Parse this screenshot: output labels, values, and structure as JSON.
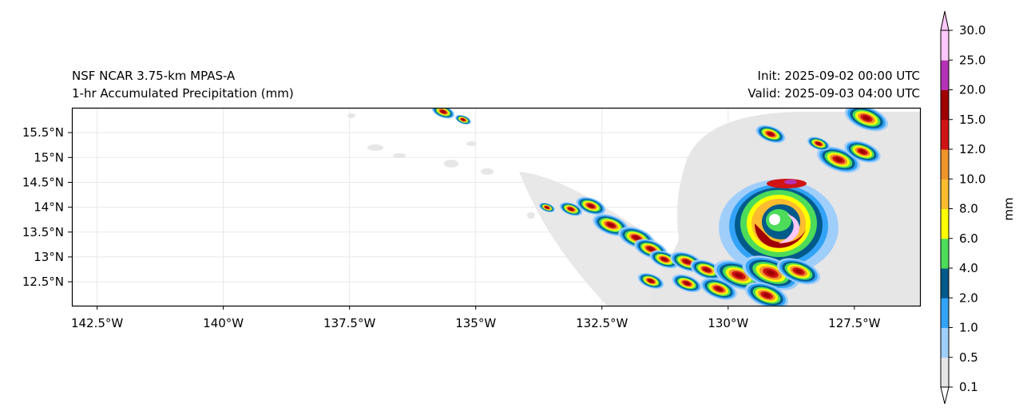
{
  "title_left": {
    "line1": "NSF NCAR 3.75-km MPAS-A",
    "line2": "1-hr Accumulated Precipitation (mm)"
  },
  "title_right": {
    "line1": "Init: 2025-09-02 00:00 UTC",
    "line2": "Valid: 2025-09-03 04:00 UTC"
  },
  "map": {
    "lon_ticks": [
      {
        "value": -142.5,
        "label": "142.5°W"
      },
      {
        "value": -140,
        "label": "140°W"
      },
      {
        "value": -137.5,
        "label": "137.5°W"
      },
      {
        "value": -135,
        "label": "135°W"
      },
      {
        "value": -132.5,
        "label": "132.5°W"
      },
      {
        "value": -130,
        "label": "130°W"
      },
      {
        "value": -127.5,
        "label": "127.5°W"
      }
    ],
    "lat_ticks": [
      {
        "value": 15.5,
        "label": "15.5°N"
      },
      {
        "value": 15,
        "label": "15°N"
      },
      {
        "value": 14.5,
        "label": "14.5°N"
      },
      {
        "value": 14,
        "label": "14°N"
      },
      {
        "value": 13.5,
        "label": "13.5°N"
      },
      {
        "value": 13,
        "label": "13°N"
      },
      {
        "value": 12.5,
        "label": "12.5°N"
      }
    ],
    "lon_range": [
      -143,
      -126.2
    ],
    "lat_range": [
      12.02,
      16.0
    ]
  },
  "colorbar": {
    "label": "mm",
    "levels": [
      "0.1",
      "0.5",
      "1.0",
      "2.0",
      "4.0",
      "6.0",
      "8.0",
      "10.0",
      "12.0",
      "15.0",
      "20.0",
      "25.0",
      "30.0"
    ],
    "colors": [
      "#e6e6e6",
      "#a0cefa",
      "#33a3f8",
      "#005a8a",
      "#4cdc5a",
      "#ffff00",
      "#fdbc30",
      "#f0942c",
      "#d01414",
      "#a00000",
      "#b432b4",
      "#ffc8fa"
    ],
    "over_color": "#ffc8fa",
    "under_color": "#ffffff"
  }
}
